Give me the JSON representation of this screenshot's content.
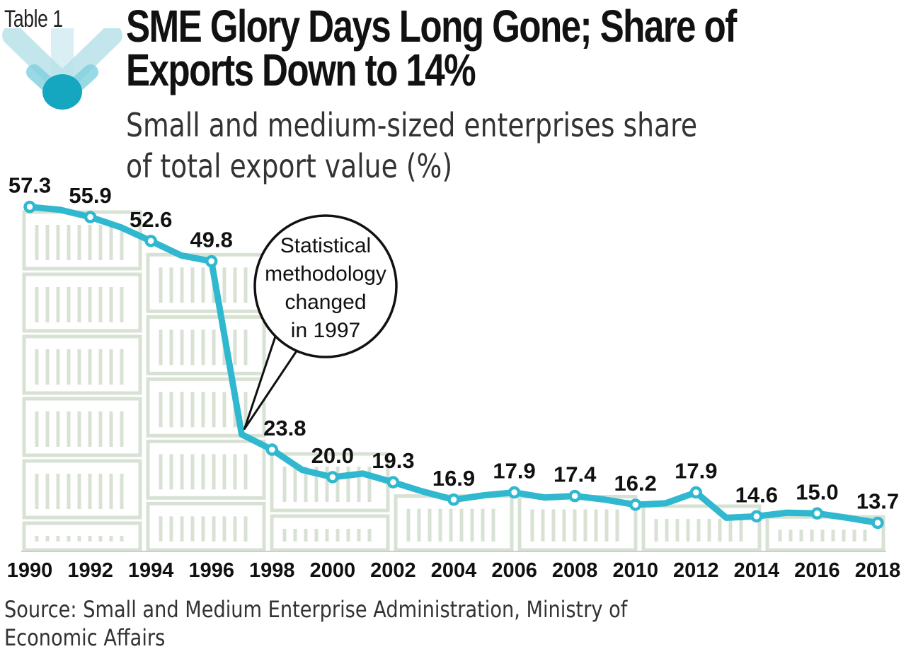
{
  "header": {
    "tag": "Table 1",
    "title_line1": "SME Glory Days Long Gone; Share of",
    "title_line2": "Exports Down to 14%",
    "subtitle_line1": "Small and medium-sized enterprises share",
    "subtitle_line2": "of total export value (%)"
  },
  "source": {
    "line1": "Source: Small and Medium Enterprise Administration, Ministry of",
    "line2": "Economic Affairs"
  },
  "colors": {
    "line": "#2fb8cf",
    "marker_fill": "#ffffff",
    "background_pattern": "#d8e2d4",
    "logo_light": "#b9e2ea",
    "logo_dark": "#15a6c0"
  },
  "chart_data": {
    "type": "line",
    "title": "SME Glory Days Long Gone; Share of Exports Down to 14%",
    "ylabel": "Small and medium-sized enterprises share of total export value (%)",
    "xlabel": "",
    "x": [
      1990,
      1991,
      1992,
      1993,
      1994,
      1995,
      1996,
      1997,
      1998,
      1999,
      2000,
      2001,
      2002,
      2003,
      2004,
      2005,
      2006,
      2007,
      2008,
      2009,
      2010,
      2011,
      2012,
      2013,
      2014,
      2015,
      2016,
      2017,
      2018
    ],
    "values": [
      57.3,
      56.9,
      55.9,
      54.5,
      52.6,
      50.6,
      49.8,
      25.9,
      23.8,
      21.0,
      20.0,
      20.5,
      19.3,
      18.0,
      16.9,
      17.5,
      17.9,
      17.2,
      17.4,
      16.9,
      16.2,
      16.4,
      17.9,
      14.4,
      14.6,
      15.1,
      15.0,
      14.4,
      13.7
    ],
    "marked_years": [
      1990,
      1992,
      1994,
      1996,
      1998,
      2000,
      2002,
      2004,
      2006,
      2008,
      2010,
      2012,
      2014,
      2016,
      2018
    ],
    "labeled_points": [
      {
        "year": 1990,
        "label": "57.3"
      },
      {
        "year": 1992,
        "label": "55.9"
      },
      {
        "year": 1994,
        "label": "52.6"
      },
      {
        "year": 1996,
        "label": "49.8"
      },
      {
        "year": 1998,
        "label": "23.8"
      },
      {
        "year": 2000,
        "label": "20.0"
      },
      {
        "year": 2002,
        "label": "19.3"
      },
      {
        "year": 2004,
        "label": "16.9"
      },
      {
        "year": 2006,
        "label": "17.9"
      },
      {
        "year": 2008,
        "label": "17.4"
      },
      {
        "year": 2010,
        "label": "16.2"
      },
      {
        "year": 2012,
        "label": "17.9"
      },
      {
        "year": 2014,
        "label": "14.6"
      },
      {
        "year": 2016,
        "label": "15.0"
      },
      {
        "year": 2018,
        "label": "13.7"
      }
    ],
    "tick_labels": [
      "1990",
      "1992",
      "1994",
      "1996",
      "1998",
      "2000",
      "2002",
      "2004",
      "2006",
      "2008",
      "2010",
      "2012",
      "2014",
      "2016",
      "2018"
    ],
    "annotation": {
      "year": 1997,
      "lines": [
        "Statistical",
        "methodology",
        "changed",
        "in 1997"
      ]
    },
    "ylim": [
      0,
      62
    ],
    "grid": false,
    "legend": "none"
  }
}
